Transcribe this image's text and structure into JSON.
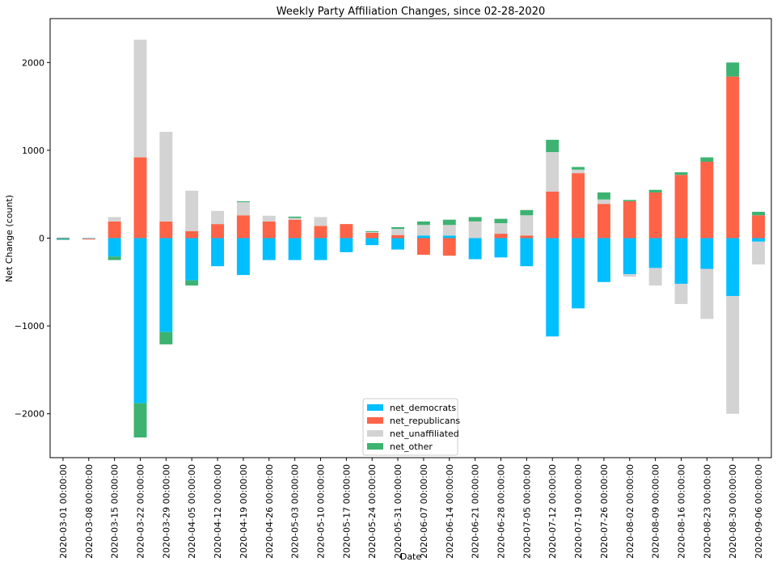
{
  "chart_data": {
    "type": "bar",
    "stacked": true,
    "title": "Weekly Party Affiliation Changes, since 02-28-2020",
    "xlabel": "Date",
    "ylabel": "Net Change (count)",
    "ylim": [
      -2500,
      2500
    ],
    "yticks": [
      -2000,
      -1000,
      0,
      1000,
      2000
    ],
    "grid": false,
    "legend_position": "bottom-center",
    "categories": [
      "2020-03-01 00:00:00",
      "2020-03-08 00:00:00",
      "2020-03-15 00:00:00",
      "2020-03-22 00:00:00",
      "2020-03-29 00:00:00",
      "2020-04-05 00:00:00",
      "2020-04-12 00:00:00",
      "2020-04-19 00:00:00",
      "2020-04-26 00:00:00",
      "2020-05-03 00:00:00",
      "2020-05-10 00:00:00",
      "2020-05-17 00:00:00",
      "2020-05-24 00:00:00",
      "2020-05-31 00:00:00",
      "2020-06-07 00:00:00",
      "2020-06-14 00:00:00",
      "2020-06-21 00:00:00",
      "2020-06-28 00:00:00",
      "2020-07-05 00:00:00",
      "2020-07-12 00:00:00",
      "2020-07-19 00:00:00",
      "2020-07-26 00:00:00",
      "2020-08-02 00:00:00",
      "2020-08-09 00:00:00",
      "2020-08-16 00:00:00",
      "2020-08-23 00:00:00",
      "2020-08-30 00:00:00",
      "2020-09-06 00:00:00"
    ],
    "series": [
      {
        "name": "net_democrats",
        "color": "#00BFFF",
        "values": [
          -10,
          -5,
          -210,
          -1880,
          -1070,
          -480,
          -320,
          -420,
          -250,
          -250,
          -250,
          -160,
          -80,
          -130,
          30,
          30,
          -240,
          -220,
          -320,
          -1120,
          -800,
          -500,
          -410,
          -340,
          -520,
          -350,
          -660,
          -40
        ]
      },
      {
        "name": "net_republicans",
        "color": "#FF6347",
        "values": [
          5,
          -10,
          190,
          920,
          190,
          80,
          160,
          260,
          190,
          210,
          140,
          160,
          60,
          35,
          -190,
          -200,
          0,
          50,
          30,
          530,
          740,
          390,
          420,
          520,
          720,
          870,
          1840,
          260
        ]
      },
      {
        "name": "net_unaffiliated",
        "color": "#D3D3D3",
        "values": [
          0,
          0,
          50,
          1340,
          1020,
          460,
          150,
          150,
          65,
          20,
          100,
          0,
          10,
          70,
          120,
          120,
          190,
          120,
          230,
          450,
          40,
          50,
          -30,
          -200,
          -230,
          -570,
          -1340,
          -260
        ]
      },
      {
        "name": "net_other",
        "color": "#3CB371",
        "values": [
          -10,
          0,
          -40,
          -390,
          -140,
          -60,
          0,
          10,
          0,
          15,
          0,
          0,
          10,
          20,
          40,
          60,
          50,
          50,
          60,
          140,
          30,
          80,
          15,
          30,
          30,
          50,
          160,
          40
        ]
      }
    ]
  }
}
